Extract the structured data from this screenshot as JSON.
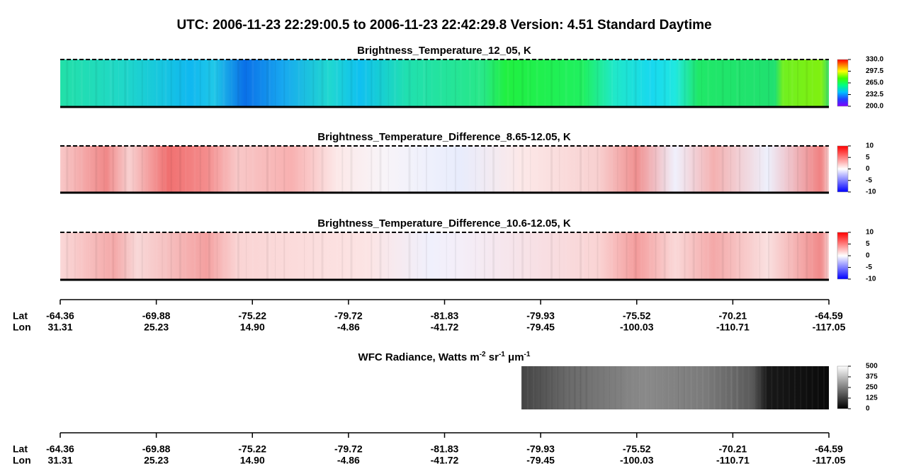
{
  "title": "UTC:  2006-11-23   22:29:00.5  to  2006-11-23   22:42:29.8    Version: 4.51  Standard Daytime",
  "panels": [
    {
      "title": "Brightness_Temperature_12_05, K",
      "clim": [
        200,
        330
      ],
      "ticks": [
        {
          "value": 200,
          "label": "200.0"
        },
        {
          "value": 232.5,
          "label": "232.5"
        },
        {
          "value": 265,
          "label": "265.0"
        },
        {
          "value": 297.5,
          "label": "297.5"
        },
        {
          "value": 330,
          "label": "330.0"
        }
      ]
    },
    {
      "title": "Brightness_Temperature_Difference_8.65-12.05, K",
      "clim": [
        -10,
        10
      ],
      "ticks": [
        -10,
        -5,
        0,
        5,
        10
      ]
    },
    {
      "title": "Brightness_Temperature_Difference_10.6-12.05, K",
      "clim": [
        -10,
        10
      ],
      "ticks": [
        -10,
        -5,
        0,
        5,
        10
      ]
    },
    {
      "title_segments": [
        {
          "base": "WFC Radiance, Watts m",
          "sup": "-2"
        },
        {
          "base": " sr",
          "sup": "-1"
        },
        {
          "base": " μm",
          "sup": "-1"
        }
      ],
      "clim": [
        0,
        500
      ],
      "ticks": [
        0,
        125,
        250,
        375,
        500
      ]
    }
  ],
  "axes": [
    {
      "lat_label": "Lat",
      "lon_label": "Lon",
      "lat": [
        "-64.36",
        "-69.88",
        "-75.22",
        "-79.72",
        "-81.83",
        "-79.93",
        "-75.52",
        "-70.21",
        "-64.59"
      ],
      "lon": [
        "31.31",
        "25.23",
        "14.90",
        "-4.86",
        "-41.72",
        "-79.45",
        "-100.03",
        "-110.71",
        "-117.05"
      ]
    },
    {
      "lat_label": "Lat",
      "lon_label": "Lon",
      "lat": [
        "-64.36",
        "-69.88",
        "-75.22",
        "-79.72",
        "-81.83",
        "-79.93",
        "-75.52",
        "-70.21",
        "-64.59"
      ],
      "lon": [
        "31.31",
        "25.23",
        "14.90",
        "-4.86",
        "-41.72",
        "-79.45",
        "-100.03",
        "-110.71",
        "-117.05"
      ]
    }
  ]
}
